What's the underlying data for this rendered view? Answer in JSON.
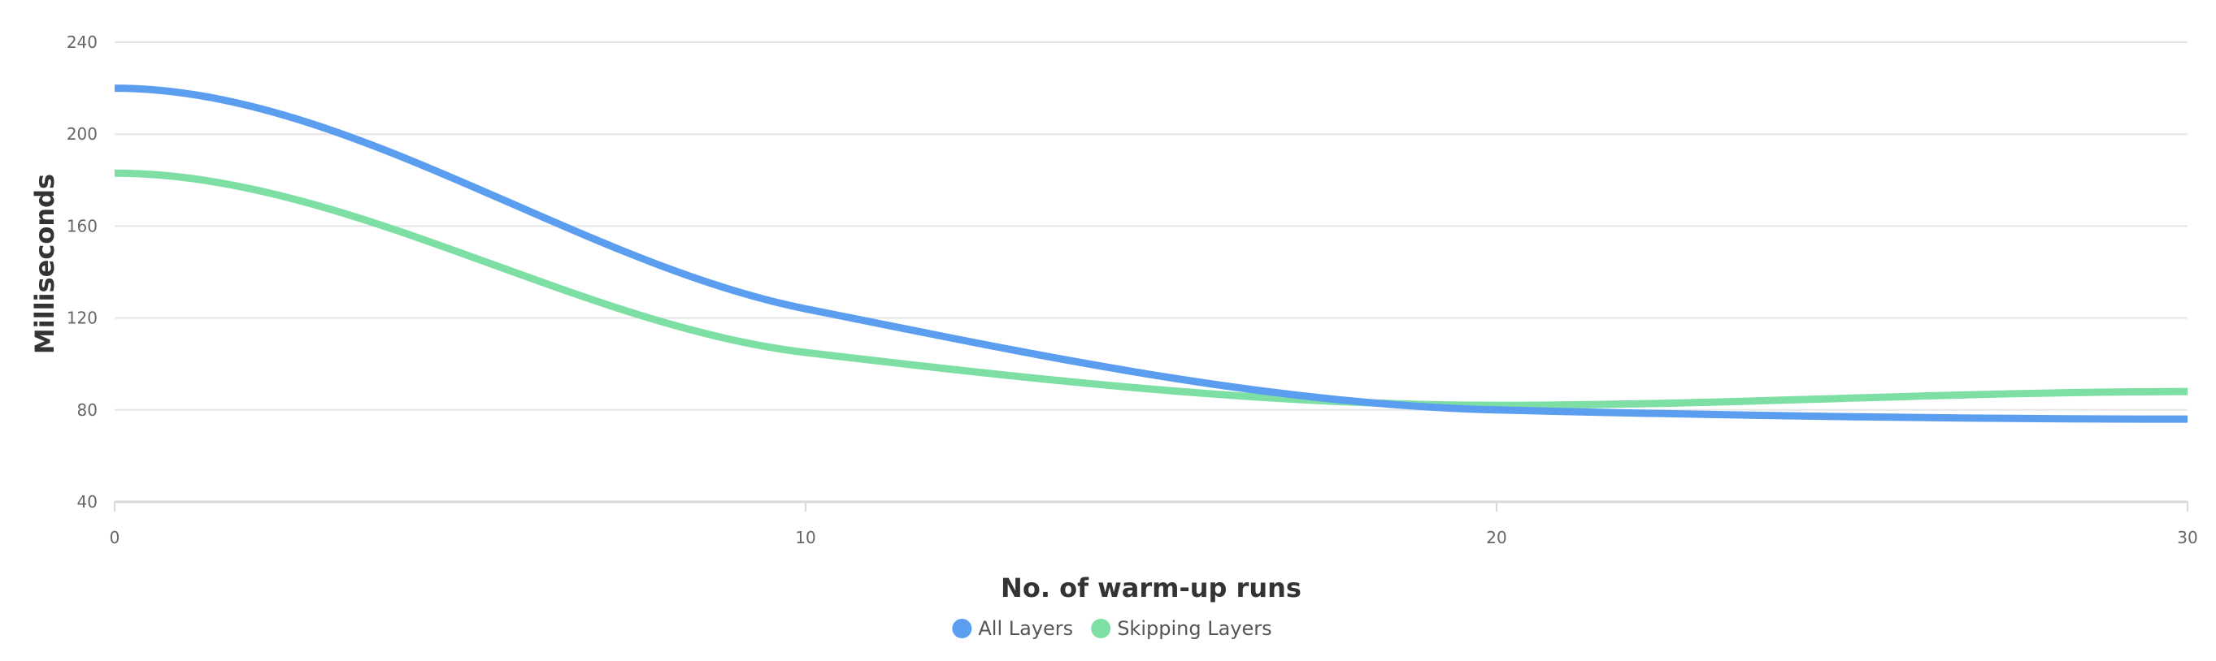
{
  "chart_data": {
    "type": "line",
    "xlabel": "No. of warm-up runs",
    "ylabel": "Milliseconds",
    "xlim": [
      0,
      30
    ],
    "ylim": [
      40,
      240
    ],
    "xticks": [
      0,
      10,
      20,
      30
    ],
    "yticks": [
      40,
      80,
      120,
      160,
      200,
      240
    ],
    "grid": true,
    "legend": "bottom-center",
    "series": [
      {
        "name": "All Layers",
        "color": "#5b9ef0",
        "x": [
          0,
          10,
          20,
          30
        ],
        "values": [
          220,
          124,
          80,
          76
        ]
      },
      {
        "name": "Skipping Layers",
        "color": "#7ddfa4",
        "x": [
          0,
          10,
          20,
          30
        ],
        "values": [
          183,
          105,
          82,
          88
        ]
      }
    ]
  },
  "colors": {
    "grid": "#e6e6e6",
    "axis": "#d9d9d9",
    "tick_text": "#666666",
    "title_text": "#333333",
    "legend_text": "#555555"
  }
}
